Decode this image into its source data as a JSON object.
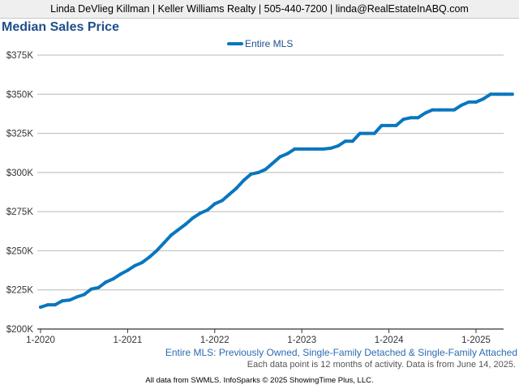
{
  "header": {
    "contact": "Linda DeVlieg Killman | Keller Williams Realty | 505-440-7200 | linda@RealEstateInABQ.com"
  },
  "chart_data": {
    "type": "line",
    "title": "Median Sales Price",
    "legend": {
      "placement": "top-center",
      "entries": [
        "Entire MLS"
      ]
    },
    "colors": {
      "series": "#0a76be",
      "grid": "#b8b8b8",
      "title": "#1f4e8c"
    },
    "xlabel": "",
    "ylabel": "",
    "ylim": [
      200000,
      375000
    ],
    "y_ticks": [
      {
        "value": 200000,
        "label": "$200K"
      },
      {
        "value": 225000,
        "label": "$225K"
      },
      {
        "value": 250000,
        "label": "$250K"
      },
      {
        "value": 275000,
        "label": "$275K"
      },
      {
        "value": 300000,
        "label": "$300K"
      },
      {
        "value": 325000,
        "label": "$325K"
      },
      {
        "value": 350000,
        "label": "$350K"
      },
      {
        "value": 375000,
        "label": "$375K"
      }
    ],
    "x_ticks": [
      {
        "index": 0,
        "label": "1-2020"
      },
      {
        "index": 12,
        "label": "1-2021"
      },
      {
        "index": 24,
        "label": "1-2022"
      },
      {
        "index": 36,
        "label": "1-2023"
      },
      {
        "index": 48,
        "label": "1-2024"
      },
      {
        "index": 60,
        "label": "1-2025"
      }
    ],
    "grid": true,
    "series": [
      {
        "name": "Entire MLS",
        "x_start": "1-2020",
        "x_end": "5-2025",
        "values": [
          214000,
          215500,
          215500,
          218000,
          218500,
          220500,
          222000,
          225500,
          226500,
          230000,
          232000,
          235000,
          237500,
          240500,
          242500,
          246000,
          250000,
          255000,
          260000,
          263500,
          267000,
          271000,
          274000,
          276000,
          280000,
          282000,
          286000,
          290000,
          295000,
          299000,
          300000,
          302000,
          306000,
          310000,
          312000,
          315000,
          315000,
          315000,
          315000,
          315000,
          315500,
          317000,
          320000,
          320000,
          325000,
          325000,
          325000,
          330000,
          330000,
          330000,
          334000,
          335000,
          335000,
          338000,
          340000,
          340000,
          340000,
          340000,
          343000,
          345000,
          345000,
          347000,
          350000,
          350000,
          350000,
          350000
        ]
      }
    ]
  },
  "subtitle": "Entire MLS: Previously Owned, Single-Family Detached & Single-Family Attached",
  "note": "Each data point is 12 months of activity. Data is from June 14, 2025.",
  "footer": "All data from SWMLS. InfoSparks © 2025 ShowingTime Plus, LLC."
}
